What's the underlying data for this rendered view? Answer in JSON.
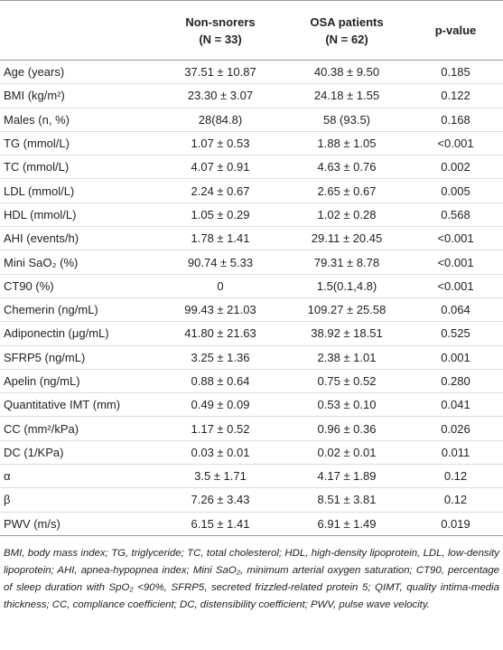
{
  "table": {
    "columns": [
      {
        "name": "Non-snorers",
        "n": "(N = 33)"
      },
      {
        "name": "OSA patients",
        "n": "(N = 62)"
      },
      {
        "name": "p-value"
      }
    ],
    "rows": [
      [
        "Age (years)",
        "37.51 ± 10.87",
        "40.38 ± 9.50",
        "0.185"
      ],
      [
        "BMI (kg/m²)",
        "23.30 ± 3.07",
        "24.18 ± 1.55",
        "0.122"
      ],
      [
        "Males (n, %)",
        "28(84.8)",
        "58 (93.5)",
        "0.168"
      ],
      [
        "TG (mmol/L)",
        "1.07 ± 0.53",
        "1.88 ± 1.05",
        "<0.001"
      ],
      [
        "TC (mmol/L)",
        "4.07 ± 0.91",
        "4.63 ± 0.76",
        "0.002"
      ],
      [
        "LDL (mmol/L)",
        "2.24 ± 0.67",
        "2.65 ± 0.67",
        "0.005"
      ],
      [
        "HDL (mmol/L)",
        "1.05 ± 0.29",
        "1.02 ± 0.28",
        "0.568"
      ],
      [
        "AHI (events/h)",
        "1.78 ± 1.41",
        "29.11 ± 20.45",
        "<0.001"
      ],
      [
        "Mini SaO₂ (%)",
        "90.74 ± 5.33",
        "79.31 ± 8.78",
        "<0.001"
      ],
      [
        "CT90 (%)",
        "0",
        "1.5(0.1,4.8)",
        "<0.001"
      ],
      [
        "Chemerin (ng/mL)",
        "99.43 ± 21.03",
        "109.27 ± 25.58",
        "0.064"
      ],
      [
        "Adiponectin (μg/mL)",
        "41.80 ± 21.63",
        "38.92 ± 18.51",
        "0.525"
      ],
      [
        "SFRP5 (ng/mL)",
        "3.25 ± 1.36",
        "2.38 ± 1.01",
        "0.001"
      ],
      [
        "Apelin (ng/mL)",
        "0.88 ± 0.64",
        "0.75 ± 0.52",
        "0.280"
      ],
      [
        "Quantitative IMT (mm)",
        "0.49 ± 0.09",
        "0.53 ± 0.10",
        "0.041"
      ],
      [
        "CC (mm²/kPa)",
        "1.17 ± 0.52",
        "0.96 ± 0.36",
        "0.026"
      ],
      [
        "DC (1/KPa)",
        "0.03 ± 0.01",
        "0.02 ± 0.01",
        "0.011"
      ],
      [
        "α",
        "3.5 ± 1.71",
        "4.17 ± 1.89",
        "0.12"
      ],
      [
        "β",
        "7.26 ± 3.43",
        "8.51 ± 3.81",
        "0.12"
      ],
      [
        "PWV (m/s)",
        "6.15 ± 1.41",
        "6.91 ± 1.49",
        "0.019"
      ]
    ]
  },
  "footnote": "BMI, body mass index; TG, triglyceride; TC, total cholesterol; HDL, high-density lipoprotein, LDL, low-density lipoprotein; AHI, apnea-hypopnea index; Mini SaO₂, minimum arterial oxygen saturation; CT90, percentage of sleep duration with SpO₂ <90%, SFRP5, secreted frizzled-related protein 5; QIMT, quality intima-media thickness; CC, compliance coefficient; DC, distensibility coefficient; PWV, pulse wave velocity."
}
